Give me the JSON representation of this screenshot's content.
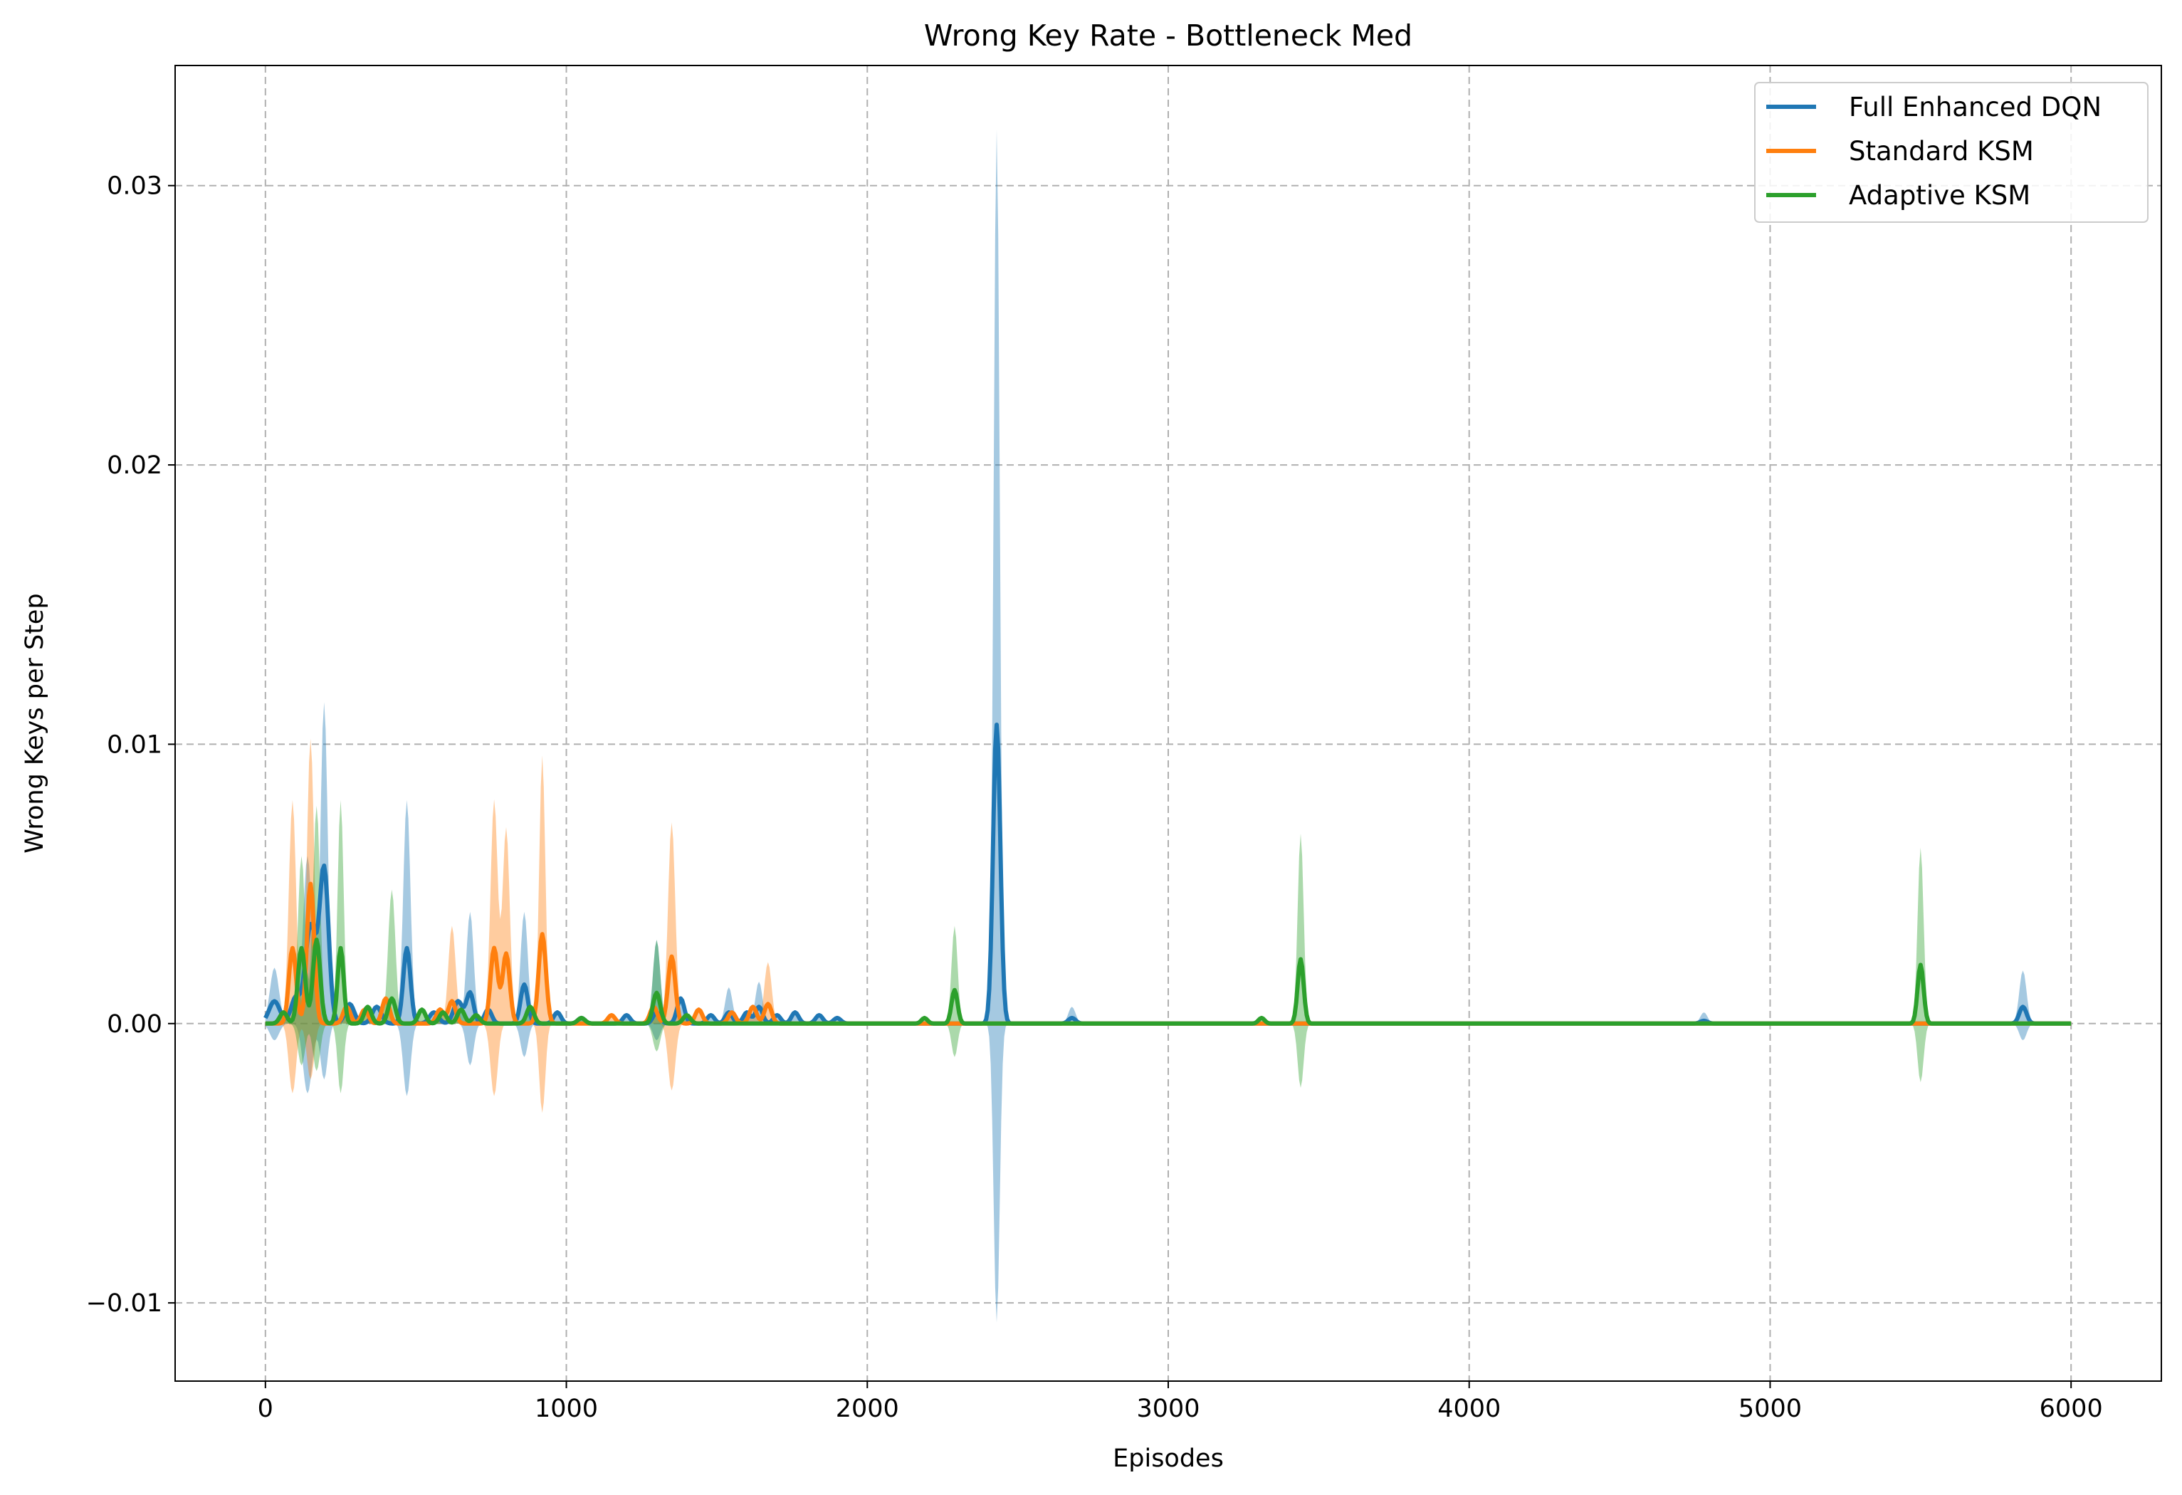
{
  "chart_data": {
    "type": "line",
    "title": "Wrong Key Rate - Bottleneck Med",
    "xlabel": "Episodes",
    "ylabel": "Wrong Keys per Step",
    "xlim": [
      -300,
      6300
    ],
    "ylim": [
      -0.0128,
      0.0343
    ],
    "x_ticks": [
      0,
      1000,
      2000,
      3000,
      4000,
      5000,
      6000
    ],
    "x_tick_labels": [
      "0",
      "1000",
      "2000",
      "3000",
      "4000",
      "5000",
      "6000"
    ],
    "y_ticks": [
      -0.01,
      0.0,
      0.01,
      0.02,
      0.03
    ],
    "y_tick_labels": [
      "−0.01",
      "0.00",
      "0.01",
      "0.02",
      "0.03"
    ],
    "grid": true,
    "legend_position": "top-right",
    "series": [
      {
        "name": "Full Enhanced DQN",
        "color": "#1f77b4",
        "peaks": [
          [
            30,
            0.0008,
            18
          ],
          [
            100,
            0.0009,
            15
          ],
          [
            150,
            0.0035,
            18
          ],
          [
            195,
            0.0055,
            15
          ],
          [
            280,
            0.0007,
            15
          ],
          [
            370,
            0.0006,
            15
          ],
          [
            470,
            0.0027,
            12
          ],
          [
            560,
            0.0004,
            15
          ],
          [
            640,
            0.0008,
            15
          ],
          [
            680,
            0.0011,
            12
          ],
          [
            740,
            0.0005,
            12
          ],
          [
            860,
            0.0014,
            12
          ],
          [
            970,
            0.0004,
            12
          ],
          [
            1050,
            0.0002,
            12
          ],
          [
            1200,
            0.0003,
            12
          ],
          [
            1300,
            0.0004,
            12
          ],
          [
            1380,
            0.0009,
            12
          ],
          [
            1480,
            0.0003,
            12
          ],
          [
            1540,
            0.0004,
            12
          ],
          [
            1600,
            0.0004,
            12
          ],
          [
            1640,
            0.0006,
            12
          ],
          [
            1700,
            0.0003,
            12
          ],
          [
            1760,
            0.0004,
            12
          ],
          [
            1840,
            0.0003,
            12
          ],
          [
            1900,
            0.0002,
            12
          ],
          [
            2430,
            0.0107,
            12
          ],
          [
            2680,
            0.0002,
            12
          ],
          [
            4780,
            0.0001,
            12
          ],
          [
            5840,
            0.0006,
            12
          ]
        ],
        "band_peaks": [
          [
            30,
            0.002,
            15
          ],
          [
            140,
            0.006,
            15
          ],
          [
            195,
            0.0115,
            12
          ],
          [
            470,
            0.008,
            12
          ],
          [
            680,
            0.004,
            12
          ],
          [
            860,
            0.004,
            12
          ],
          [
            1300,
            0.003,
            12
          ],
          [
            1540,
            0.0013,
            12
          ],
          [
            1640,
            0.0015,
            12
          ],
          [
            2430,
            0.032,
            10
          ],
          [
            2680,
            0.0006,
            12
          ],
          [
            4780,
            0.0004,
            12
          ],
          [
            5840,
            0.0019,
            12
          ]
        ],
        "band_troughs": [
          [
            30,
            -0.0006,
            15
          ],
          [
            140,
            -0.0025,
            15
          ],
          [
            195,
            -0.002,
            12
          ],
          [
            470,
            -0.0026,
            12
          ],
          [
            680,
            -0.0015,
            12
          ],
          [
            860,
            -0.0012,
            12
          ],
          [
            1300,
            -0.0006,
            12
          ],
          [
            2430,
            -0.0107,
            10
          ],
          [
            5840,
            -0.0006,
            12
          ]
        ]
      },
      {
        "name": "Standard KSM",
        "color": "#ff7f0e",
        "peaks": [
          [
            90,
            0.0027,
            12
          ],
          [
            150,
            0.005,
            12
          ],
          [
            270,
            0.0006,
            12
          ],
          [
            330,
            0.0005,
            12
          ],
          [
            400,
            0.0009,
            12
          ],
          [
            580,
            0.0005,
            12
          ],
          [
            620,
            0.0008,
            12
          ],
          [
            760,
            0.0027,
            12
          ],
          [
            800,
            0.0025,
            12
          ],
          [
            920,
            0.0032,
            12
          ],
          [
            1150,
            0.0003,
            12
          ],
          [
            1290,
            0.0006,
            12
          ],
          [
            1350,
            0.0024,
            12
          ],
          [
            1440,
            0.0005,
            12
          ],
          [
            1550,
            0.0004,
            12
          ],
          [
            1620,
            0.0006,
            12
          ],
          [
            1670,
            0.0007,
            12
          ]
        ],
        "band_peaks": [
          [
            90,
            0.008,
            12
          ],
          [
            150,
            0.0102,
            12
          ],
          [
            760,
            0.008,
            12
          ],
          [
            800,
            0.007,
            12
          ],
          [
            920,
            0.0096,
            10
          ],
          [
            1350,
            0.0072,
            12
          ],
          [
            1670,
            0.0022,
            12
          ],
          [
            620,
            0.0035,
            12
          ]
        ],
        "band_troughs": [
          [
            90,
            -0.0025,
            12
          ],
          [
            150,
            -0.002,
            12
          ],
          [
            760,
            -0.0026,
            12
          ],
          [
            920,
            -0.0032,
            10
          ],
          [
            1350,
            -0.0024,
            12
          ]
        ]
      },
      {
        "name": "Adaptive KSM",
        "color": "#2ca02c",
        "peaks": [
          [
            60,
            0.0004,
            12
          ],
          [
            120,
            0.0027,
            12
          ],
          [
            170,
            0.003,
            12
          ],
          [
            250,
            0.0027,
            10
          ],
          [
            340,
            0.0006,
            12
          ],
          [
            420,
            0.0009,
            12
          ],
          [
            520,
            0.0005,
            12
          ],
          [
            590,
            0.0004,
            12
          ],
          [
            650,
            0.0005,
            12
          ],
          [
            700,
            0.0003,
            12
          ],
          [
            880,
            0.0006,
            12
          ],
          [
            1050,
            0.0002,
            12
          ],
          [
            1300,
            0.0011,
            12
          ],
          [
            1400,
            0.0003,
            12
          ],
          [
            2190,
            0.0002,
            10
          ],
          [
            2290,
            0.0012,
            10
          ],
          [
            3310,
            0.0002,
            10
          ],
          [
            3440,
            0.0023,
            10
          ],
          [
            5500,
            0.0021,
            10
          ]
        ],
        "band_peaks": [
          [
            120,
            0.006,
            12
          ],
          [
            170,
            0.0078,
            12
          ],
          [
            250,
            0.008,
            10
          ],
          [
            420,
            0.0048,
            12
          ],
          [
            1300,
            0.003,
            12
          ],
          [
            2290,
            0.0035,
            10
          ],
          [
            3440,
            0.0068,
            10
          ],
          [
            5500,
            0.0063,
            10
          ]
        ],
        "band_troughs": [
          [
            120,
            -0.0015,
            12
          ],
          [
            170,
            -0.0017,
            12
          ],
          [
            250,
            -0.0025,
            10
          ],
          [
            1300,
            -0.001,
            12
          ],
          [
            2290,
            -0.0012,
            10
          ],
          [
            3440,
            -0.0023,
            10
          ],
          [
            5500,
            -0.0021,
            10
          ]
        ]
      }
    ]
  }
}
